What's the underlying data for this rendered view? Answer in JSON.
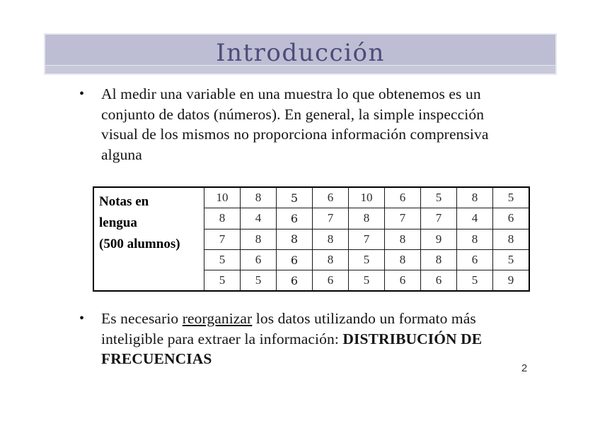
{
  "slide": {
    "title": "Introducción",
    "page_number": "2",
    "colors": {
      "band_fill": "#bdbed3",
      "band_border": "#e7e7f1",
      "title_text": "#4c4c7a",
      "body_text": "#141414",
      "table_border": "#000000"
    }
  },
  "bullet1": {
    "marker": "•",
    "lines": [
      "Al medir una variable en una muestra lo que obtenemos es un",
      "conjunto de datos (números). En general, la simple inspección",
      "visual de los mismos no proporciona información comprensiva",
      "alguna"
    ]
  },
  "bullet2": {
    "marker": "•",
    "line1_pre": "Es necesario ",
    "line1_underlined": "reorganizar",
    "line1_post": " los datos utilizando un formato más",
    "line2_pre": "inteligible para extraer la información: ",
    "line2_bold": "DISTRIBUCIÓN DE",
    "line3_bold": "FRECUENCIAS"
  },
  "table": {
    "label_lines": [
      "Notas en",
      "lengua",
      "(500 alumnos)"
    ],
    "rows": [
      [
        "10",
        "8",
        "5",
        "6",
        "10",
        "6",
        "5",
        "8",
        "5"
      ],
      [
        "8",
        "4",
        "6",
        "7",
        "8",
        "7",
        "7",
        "4",
        "6"
      ],
      [
        "7",
        "8",
        "8",
        "8",
        "7",
        "8",
        "9",
        "8",
        "8"
      ],
      [
        "5",
        "6",
        "6",
        "8",
        "5",
        "8",
        "8",
        "6",
        "5"
      ],
      [
        "5",
        "5",
        "6",
        "6",
        "5",
        "6",
        "6",
        "5",
        "9"
      ]
    ]
  }
}
